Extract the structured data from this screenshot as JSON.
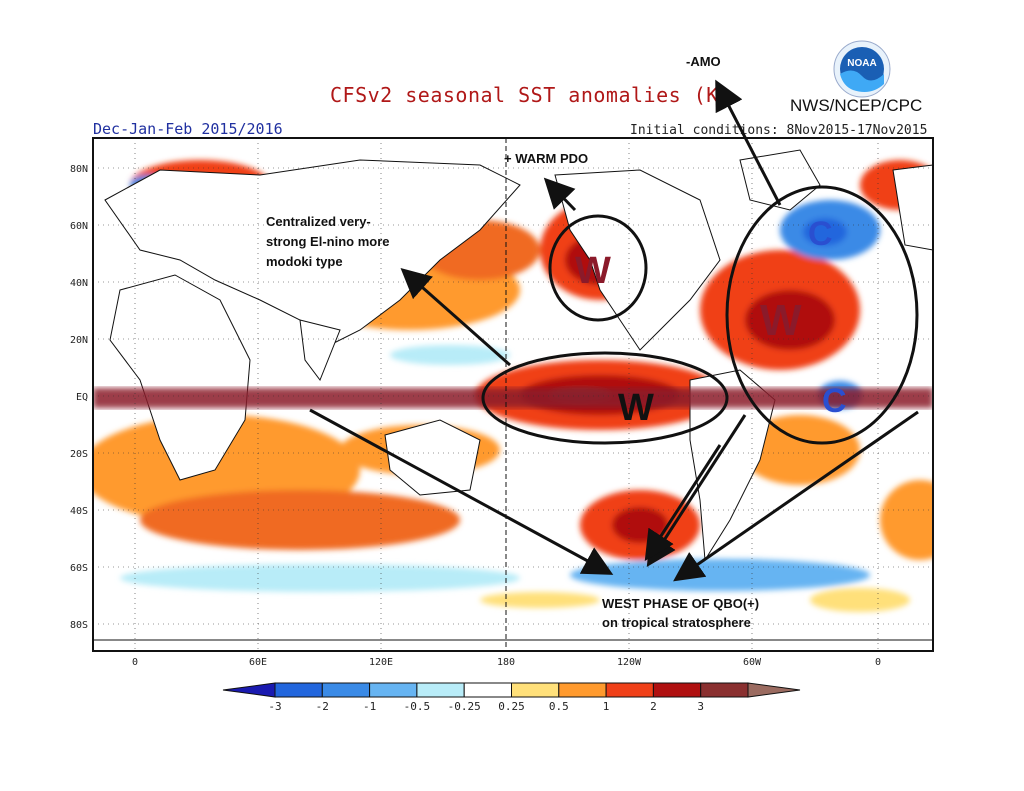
{
  "header": {
    "title": "CFSv2 seasonal SST anomalies (K)",
    "period": "Dec-Jan-Feb 2015/2016",
    "initial_conditions": "Initial conditions: 8Nov2015-17Nov2015",
    "agency": "NWS/NCEP/CPC",
    "logo_text": "NOAA"
  },
  "axes": {
    "lat_labels": [
      "80N",
      "60N",
      "40N",
      "20N",
      "EQ",
      "20S",
      "40S",
      "60S",
      "80S"
    ],
    "lon_labels": [
      "0",
      "60E",
      "120E",
      "180",
      "120W",
      "60W",
      "0"
    ]
  },
  "annotations": {
    "amo": "-AMO",
    "pdo": "+ WARM PDO",
    "enso_line1": "Centralized  very-",
    "enso_line2": "strong El-nino more",
    "enso_line3": "modoki type",
    "qbo_line1": "WEST PHASE OF QBO(+)",
    "qbo_line2": "on tropical stratosphere",
    "w_marker": "W",
    "c_marker": "C"
  },
  "colorbar": {
    "labels": [
      "-3",
      "-2",
      "-1",
      "-0.5",
      "-0.25",
      "0.25",
      "0.5",
      "1",
      "2",
      "3"
    ],
    "colors": [
      "#1a1ab0",
      "#2266dd",
      "#3a8ae6",
      "#66b4f2",
      "#b8ecf8",
      "#ffffff",
      "#ffe07a",
      "#ff9a2e",
      "#f04018",
      "#b01010",
      "#8a3030",
      "#9b6b60"
    ]
  },
  "colors": {
    "title": "#b01818",
    "period": "#2030a0",
    "equator_band": "#8b1a2a"
  }
}
